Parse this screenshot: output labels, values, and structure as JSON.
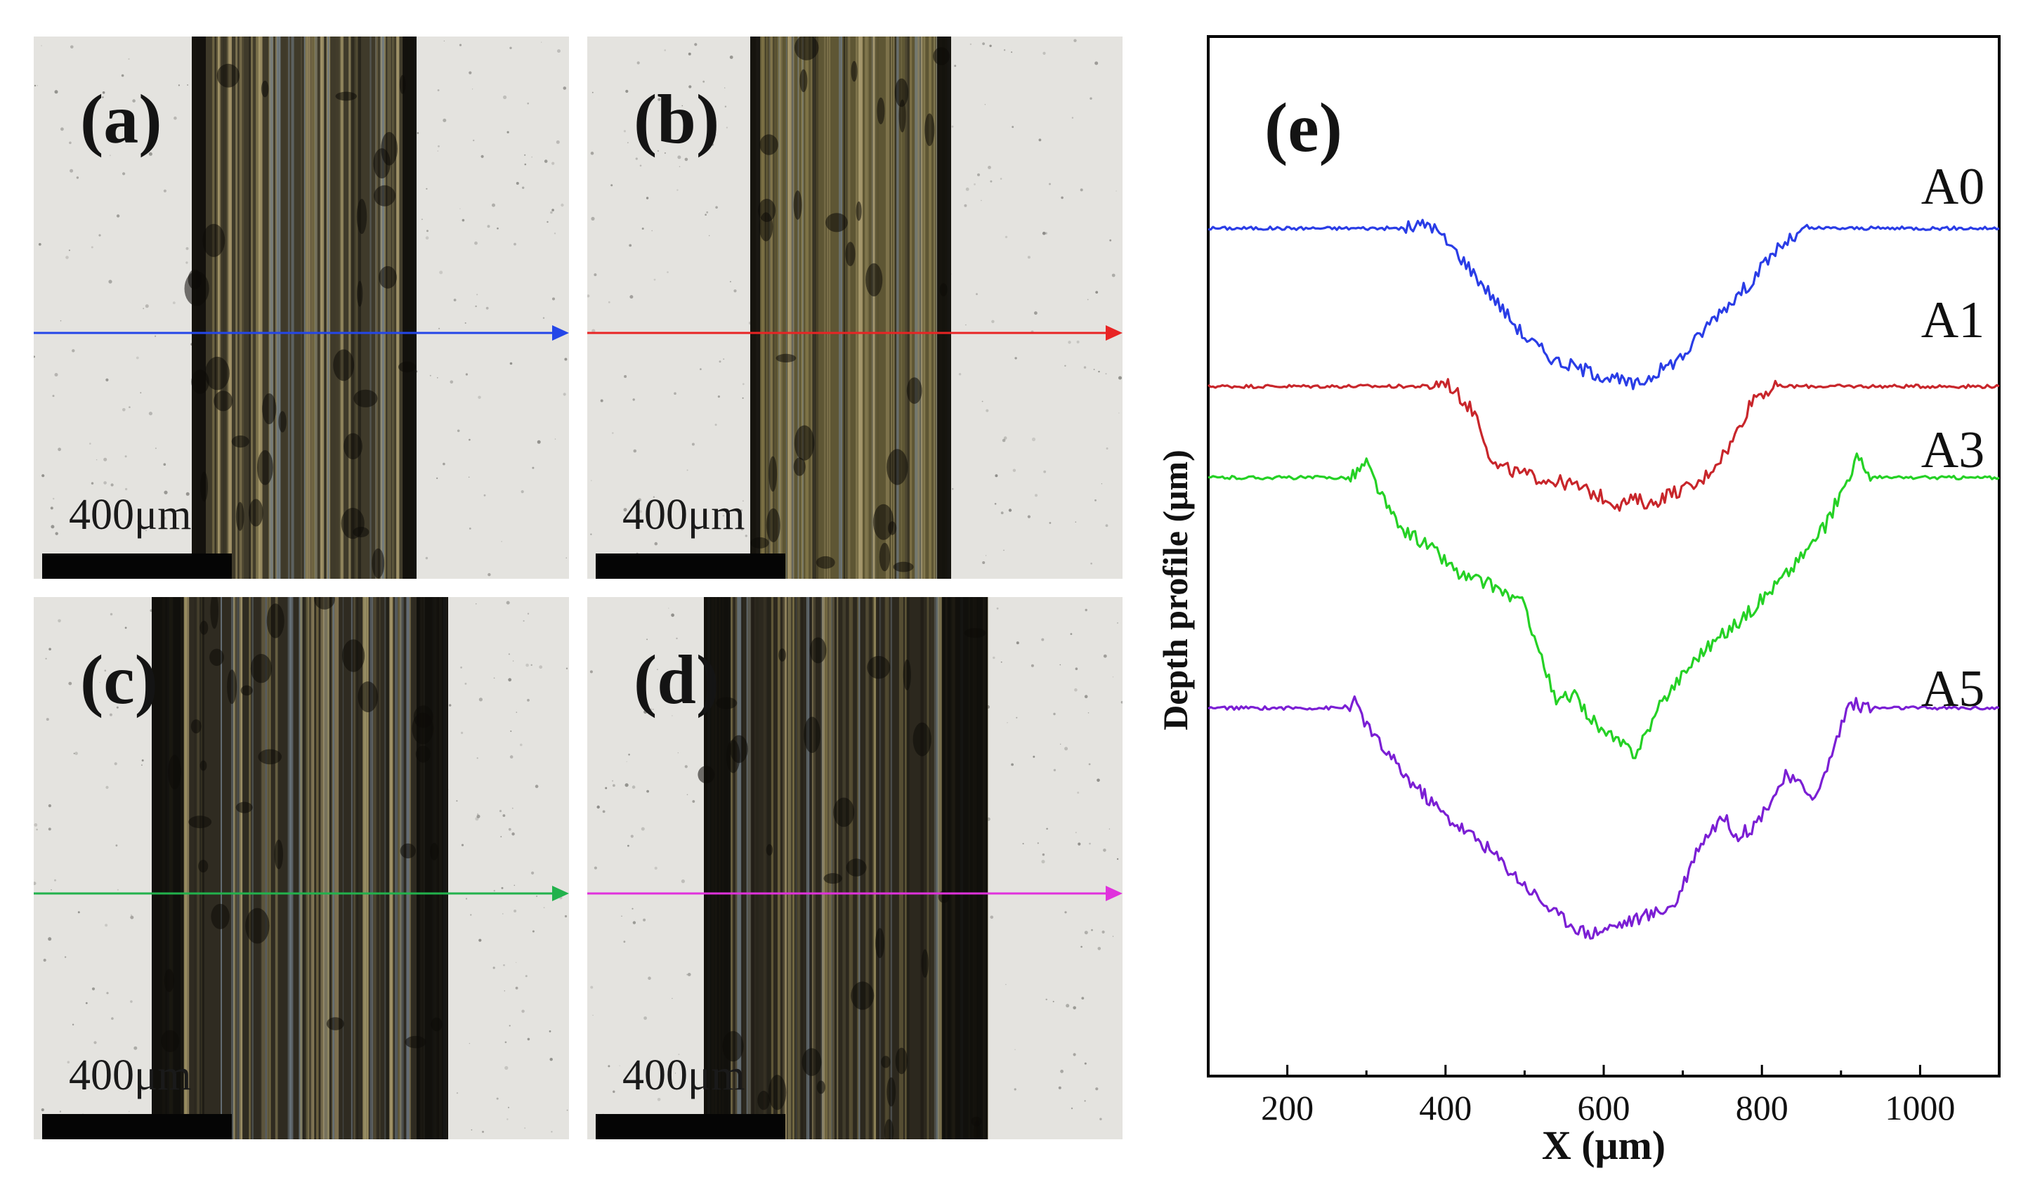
{
  "figure": {
    "panels": [
      {
        "id": "a",
        "label": "(a)",
        "scale_text": "400μm",
        "arrow_color": "#2446e8",
        "track": "narrow"
      },
      {
        "id": "b",
        "label": "(b)",
        "scale_text": "400μm",
        "arrow_color": "#e82424",
        "track": "medium"
      },
      {
        "id": "c",
        "label": "(c)",
        "scale_text": "400μm",
        "arrow_color": "#22b24c",
        "track": "wide"
      },
      {
        "id": "d",
        "label": "(d)",
        "scale_text": "400μm",
        "arrow_color": "#e032dc",
        "track": "wide"
      }
    ]
  },
  "chart_data": {
    "type": "line",
    "panel_label": "(e)",
    "title": "",
    "xlabel": "X (μm)",
    "ylabel": "Depth profile (μm)",
    "xlim": [
      100,
      1100
    ],
    "xticks": [
      200,
      400,
      600,
      800,
      1000
    ],
    "y_ticks_shown": false,
    "series": [
      {
        "name": "A0",
        "color": "#2a3de6",
        "x": [
          100,
          350,
          380,
          420,
          460,
          500,
          540,
          580,
          620,
          640,
          660,
          700,
          740,
          780,
          820,
          860,
          1100
        ],
        "y": [
          0,
          0,
          0.5,
          -3,
          -7,
          -11,
          -13.5,
          -14.5,
          -15.5,
          -16,
          -15,
          -13,
          -9,
          -6,
          -2,
          0,
          0
        ]
      },
      {
        "name": "A1",
        "color": "#c8262b",
        "x": [
          100,
          380,
          400,
          440,
          460,
          500,
          560,
          620,
          640,
          660,
          680,
          720,
          760,
          790,
          820,
          1100
        ],
        "y": [
          0,
          0,
          0.5,
          -3,
          -8,
          -9,
          -10,
          -12,
          -11.5,
          -12,
          -11,
          -10,
          -6,
          -1,
          0,
          0
        ]
      },
      {
        "name": "A3",
        "color": "#25d125",
        "x": [
          100,
          280,
          300,
          320,
          340,
          380,
          420,
          460,
          500,
          540,
          560,
          600,
          640,
          680,
          720,
          780,
          840,
          880,
          920,
          940,
          1100
        ],
        "y": [
          0,
          0,
          1.5,
          -2,
          -5,
          -7,
          -10,
          -11,
          -13,
          -23,
          -22,
          -26,
          -28,
          -22,
          -18,
          -14,
          -9,
          -5,
          2,
          0,
          0
        ]
      },
      {
        "name": "A5",
        "color": "#7b1fd4",
        "x": [
          100,
          270,
          285,
          310,
          350,
          400,
          450,
          500,
          540,
          580,
          620,
          660,
          690,
          720,
          750,
          770,
          790,
          830,
          870,
          910,
          940,
          1100
        ],
        "y": [
          0,
          0,
          0.5,
          -3,
          -7,
          -11,
          -14,
          -18,
          -21,
          -23,
          -22,
          -21,
          -20,
          -14,
          -11,
          -13,
          -12,
          -7,
          -9,
          0.5,
          0,
          0
        ]
      }
    ]
  }
}
